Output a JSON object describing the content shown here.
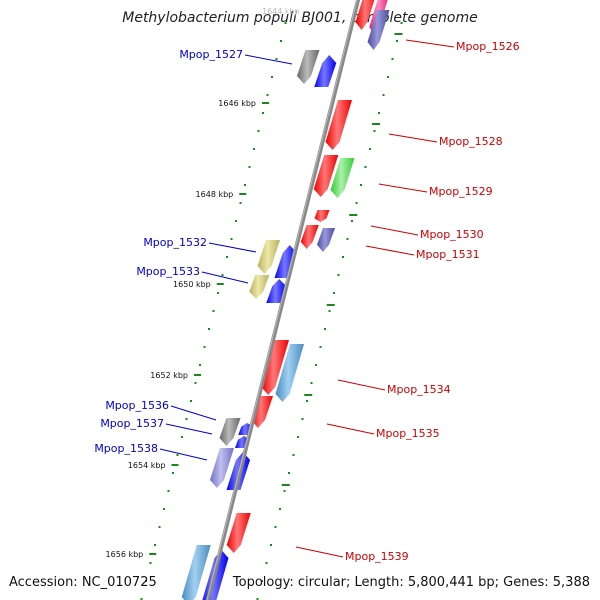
{
  "title": "Methylobacterium populi BJ001, complete genome",
  "footer": {
    "accession": "Accession: NC_010725",
    "topology": "Topology: circular; Length: 5,800,441 bp; Genes: 5,388"
  },
  "top_faint_label": "1644 kbp",
  "ticks": [
    "1646 kbp",
    "1648 kbp",
    "1650 kbp",
    "1652 kbp",
    "1654 kbp",
    "1656 kbp"
  ],
  "colors": {
    "backbone": "#808080",
    "ticks": "#1a8a1a",
    "label_left": "#0000cc",
    "label_right": "#cc0000",
    "red": "#ee0000",
    "blue": "#0000ee",
    "gray": "#666666",
    "green": "#33cc33",
    "slate": "#4a4aa0",
    "khaki": "#b8b060",
    "steel": "#4a8cc0",
    "lavender": "#7070c8",
    "pink": "#e0207a"
  },
  "genes_left": [
    {
      "id": "g1527",
      "label": "Mpop_1527"
    },
    {
      "id": "g1532",
      "label": "Mpop_1532"
    },
    {
      "id": "g1533",
      "label": "Mpop_1533"
    },
    {
      "id": "g1536",
      "label": "Mpop_1536"
    },
    {
      "id": "g1537",
      "label": "Mpop_1537"
    },
    {
      "id": "g1538",
      "label": "Mpop_1538"
    }
  ],
  "genes_right": [
    {
      "id": "g1526",
      "label": "Mpop_1526"
    },
    {
      "id": "g1528",
      "label": "Mpop_1528"
    },
    {
      "id": "g1529",
      "label": "Mpop_1529"
    },
    {
      "id": "g1530",
      "label": "Mpop_1530"
    },
    {
      "id": "g1531",
      "label": "Mpop_1531"
    },
    {
      "id": "g1534",
      "label": "Mpop_1534"
    },
    {
      "id": "g1535",
      "label": "Mpop_1535"
    },
    {
      "id": "g1539",
      "label": "Mpop_1539"
    }
  ]
}
